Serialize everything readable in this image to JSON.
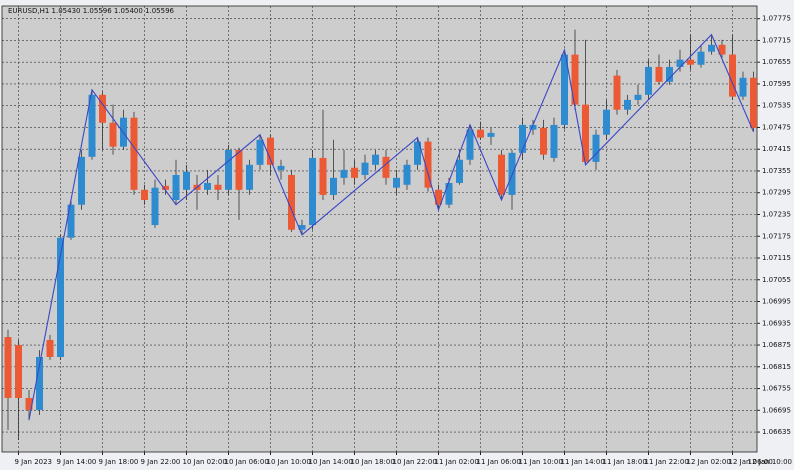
{
  "chart_data": {
    "type": "candlestick",
    "title": "EURUSD,H1  1.05430 1.05596 1.05400 1.05596",
    "categories": [
      null,
      "9 Jan 2023",
      null,
      null,
      null,
      "9 Jan 14:00",
      null,
      null,
      null,
      "9 Jan 18:00",
      null,
      null,
      null,
      "9 Jan 22:00",
      null,
      null,
      null,
      "10 Jan 02:00",
      null,
      null,
      null,
      "10 Jan 06:00",
      null,
      null,
      null,
      "10 Jan 10:00",
      null,
      null,
      null,
      "10 Jan 14:00",
      null,
      null,
      null,
      "10 Jan 18:00",
      null,
      null,
      null,
      "10 Jan 22:00",
      null,
      null,
      null,
      "11 Jan 02:00",
      null,
      null,
      null,
      "11 Jan 06:00",
      null,
      null,
      null,
      "11 Jan 10:00",
      null,
      null,
      null,
      "11 Jan 14:00",
      null,
      null,
      null,
      "11 Jan 18:00",
      null,
      null,
      null,
      "11 Jan 22:00",
      null,
      null,
      null,
      "12 Jan 02:00",
      null,
      null,
      null,
      "12 Jan 06:00",
      null,
      null,
      null,
      "12 Jan 10:00"
    ],
    "open": [
      1.06897,
      1.06875,
      1.06729,
      1.06696,
      1.06889,
      1.06842,
      1.07171,
      1.07262,
      1.07394,
      1.07565,
      1.07488,
      1.07422,
      1.07502,
      1.07303,
      1.07206,
      1.07314,
      1.07275,
      1.07303,
      1.07317,
      1.07303,
      1.07317,
      1.07303,
      1.07413,
      1.07303,
      1.07372,
      1.07447,
      1.07358,
      1.07344,
      1.07193,
      1.07206,
      1.07391,
      1.07289,
      1.07336,
      1.07364,
      1.07344,
      1.07372,
      1.07394,
      1.07309,
      1.07317,
      1.07372,
      1.07436,
      1.07303,
      1.07262,
      1.07322,
      1.07386,
      1.07469,
      1.07449,
      1.074,
      1.07289,
      1.07405,
      1.07469,
      1.07474,
      1.07391,
      1.07482,
      1.07676,
      1.07538,
      1.0738,
      1.07455,
      1.07618,
      1.07524,
      1.07551,
      1.07565,
      1.07642,
      1.07601,
      1.07642,
      1.07662,
      1.07648,
      1.07684,
      1.07703,
      1.07676,
      1.0756,
      1.07612,
      null,
      null
    ],
    "high": [
      1.06917,
      1.06889,
      1.06751,
      1.06861,
      1.06903,
      1.07179,
      1.07275,
      1.07413,
      1.07579,
      1.07574,
      1.07538,
      1.07524,
      1.07518,
      1.07317,
      1.07331,
      1.07331,
      1.07386,
      1.07372,
      1.07344,
      1.07358,
      1.07344,
      1.07427,
      1.07419,
      1.07386,
      1.07455,
      1.07455,
      1.07386,
      1.07358,
      1.0722,
      1.07413,
      1.07524,
      1.07441,
      1.07413,
      1.07386,
      1.074,
      1.07413,
      1.07413,
      1.07358,
      1.07386,
      1.07447,
      1.07447,
      1.07317,
      1.07336,
      1.07413,
      1.07482,
      1.07491,
      1.07474,
      1.07413,
      1.07413,
      1.07502,
      1.07496,
      1.07496,
      1.07502,
      1.07689,
      1.07745,
      1.07717,
      1.07469,
      1.07551,
      1.07634,
      1.07565,
      1.07593,
      1.07662,
      1.07676,
      1.07662,
      1.07689,
      1.07731,
      1.07703,
      1.07731,
      1.07717,
      1.07731,
      1.07629,
      1.07629,
      null,
      null
    ],
    "low": [
      1.06641,
      1.06613,
      1.06668,
      1.06682,
      1.06834,
      1.06834,
      1.07165,
      1.07248,
      1.07386,
      1.07413,
      1.074,
      1.07413,
      1.07289,
      1.07262,
      1.07198,
      1.07289,
      1.07262,
      1.07275,
      1.07248,
      1.07289,
      1.07275,
      1.07289,
      1.0722,
      1.07289,
      1.07358,
      1.07344,
      1.07331,
      1.07187,
      1.07179,
      1.07193,
      1.07275,
      1.07275,
      1.07317,
      1.07317,
      1.07331,
      1.07358,
      1.07317,
      1.07289,
      1.07303,
      1.07358,
      1.07298,
      1.07248,
      1.07253,
      1.07317,
      1.07372,
      1.07441,
      1.07427,
      1.07275,
      1.07248,
      1.07386,
      1.07455,
      1.07386,
      1.0738,
      1.07469,
      1.07524,
      1.07372,
      1.07358,
      1.07441,
      1.0751,
      1.0751,
      1.07538,
      1.07551,
      1.07593,
      1.07593,
      1.07629,
      1.07634,
      1.0764,
      1.07676,
      1.07667,
      1.07551,
      1.07551,
      1.07463,
      null,
      null
    ],
    "close": [
      1.06729,
      1.06729,
      1.06696,
      1.06842,
      1.06842,
      1.07171,
      1.07262,
      1.07394,
      1.07565,
      1.07488,
      1.07422,
      1.07502,
      1.07303,
      1.07275,
      1.07309,
      1.07303,
      1.07344,
      1.07353,
      1.07303,
      1.07322,
      1.07303,
      1.07413,
      1.07303,
      1.07372,
      1.07441,
      1.07372,
      1.07369,
      1.07193,
      1.07206,
      1.07391,
      1.07289,
      1.07336,
      1.07358,
      1.07336,
      1.07378,
      1.074,
      1.07336,
      1.07336,
      1.07372,
      1.07436,
      1.07309,
      1.07262,
      1.07322,
      1.07386,
      1.07469,
      1.07447,
      1.0746,
      1.07289,
      1.07405,
      1.07482,
      1.07482,
      1.074,
      1.07482,
      1.07676,
      1.07538,
      1.0738,
      1.07455,
      1.07524,
      1.07524,
      1.07551,
      1.07565,
      1.07642,
      1.07601,
      1.07642,
      1.07662,
      1.07648,
      1.07684,
      1.07703,
      1.07676,
      1.0756,
      1.07612,
      1.07474,
      null,
      null
    ],
    "up_color": "#2f8bd0",
    "down_color": "#ec5a35",
    "ylim": [
      1.0658,
      1.0781
    ],
    "yticks": [
      1.07775,
      1.07715,
      1.07655,
      1.07595,
      1.07535,
      1.07475,
      1.07415,
      1.07355,
      1.07295,
      1.07235,
      1.07175,
      1.07115,
      1.07055,
      1.06995,
      1.06935,
      1.06875,
      1.06815,
      1.06755,
      1.06695,
      1.06635
    ],
    "grid": true,
    "zigzag": {
      "color": "#3a48c6",
      "x": [
        2,
        8,
        16,
        24,
        28,
        39,
        41,
        44,
        47,
        53,
        55,
        67,
        71
      ],
      "values": [
        1.06668,
        1.07579,
        1.07262,
        1.07455,
        1.07179,
        1.07447,
        1.07248,
        1.07482,
        1.07275,
        1.07689,
        1.07372,
        1.07731,
        1.07463
      ]
    }
  }
}
